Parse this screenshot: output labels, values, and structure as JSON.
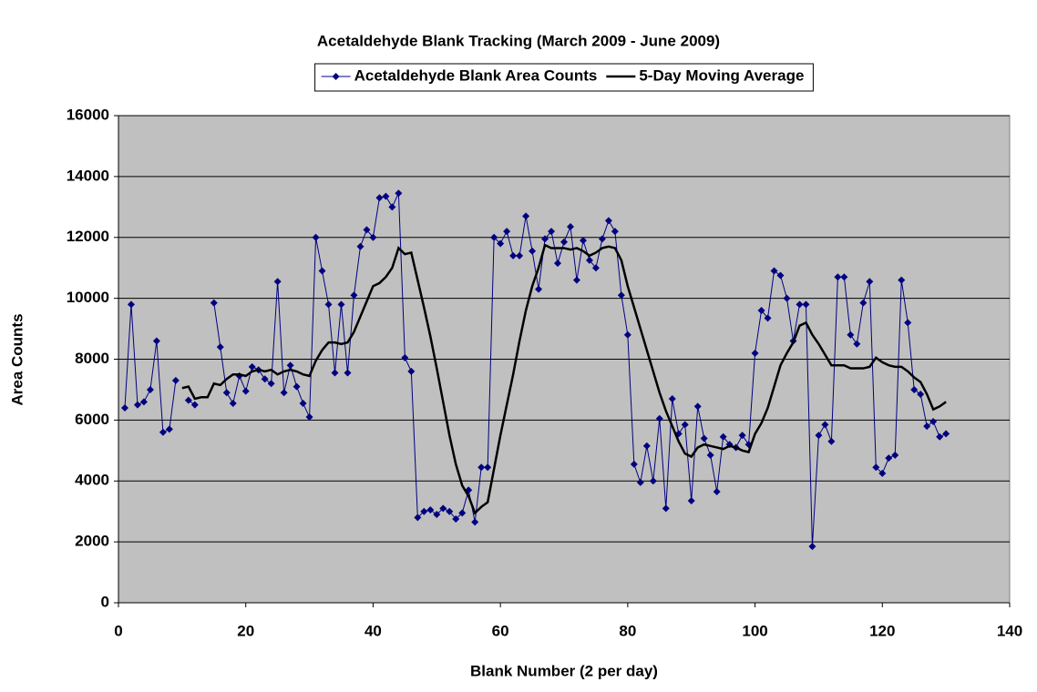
{
  "chart_data": {
    "type": "line",
    "title": "Acetaldehyde Blank Tracking (March 2009 - June 2009)",
    "x_label": "Blank Number (2 per day)",
    "y_label": "Area Counts",
    "x": [
      1,
      2,
      3,
      4,
      5,
      6,
      7,
      8,
      9,
      10,
      11,
      12,
      13,
      14,
      15,
      16,
      17,
      18,
      19,
      20,
      21,
      22,
      23,
      24,
      25,
      26,
      27,
      28,
      29,
      30,
      31,
      32,
      33,
      34,
      35,
      36,
      37,
      38,
      39,
      40,
      41,
      42,
      43,
      44,
      45,
      46,
      47,
      48,
      49,
      50,
      51,
      52,
      53,
      54,
      55,
      56,
      57,
      58,
      59,
      60,
      61,
      62,
      63,
      64,
      65,
      66,
      67,
      68,
      69,
      70,
      71,
      72,
      73,
      74,
      75,
      76,
      77,
      78,
      79,
      80,
      81,
      82,
      83,
      84,
      85,
      86,
      87,
      88,
      89,
      90,
      91,
      92,
      93,
      94,
      95,
      96,
      97,
      98,
      99,
      100,
      101,
      102,
      103,
      104,
      105,
      106,
      107,
      108,
      109,
      110,
      111,
      112,
      113,
      114,
      115,
      116,
      117,
      118,
      119,
      120,
      121,
      122,
      123,
      124,
      125,
      126,
      127,
      128,
      129,
      130
    ],
    "series": [
      {
        "name": "Acetaldehyde Blank Area Counts",
        "color": "#000080",
        "marker": "diamond",
        "values": [
          6400,
          9800,
          6500,
          6600,
          7000,
          8600,
          5600,
          5700,
          7300,
          null,
          6650,
          6500,
          null,
          null,
          9850,
          8400,
          6900,
          6550,
          7450,
          6950,
          7750,
          7650,
          7350,
          7200,
          10550,
          6900,
          7800,
          7100,
          6550,
          6100,
          12000,
          10900,
          9800,
          7550,
          9800,
          7550,
          10100,
          11700,
          12250,
          12000,
          13300,
          13350,
          13000,
          13450,
          8050,
          7600,
          2800,
          3000,
          3050,
          2900,
          3100,
          3000,
          2750,
          2950,
          3700,
          2650,
          4450,
          4450,
          12000,
          11800,
          12200,
          11400,
          11400,
          12700,
          11550,
          10300,
          11950,
          12200,
          11150,
          11850,
          12350,
          10600,
          11900,
          11250,
          11000,
          11950,
          12550,
          12200,
          10100,
          8800,
          4550,
          3950,
          5150,
          4000,
          6050,
          3100,
          6700,
          5550,
          5850,
          3350,
          6450,
          5400,
          4850,
          3650,
          5450,
          5200,
          5100,
          5500,
          5200,
          8200,
          9600,
          9350,
          10900,
          10750,
          10000,
          8600,
          9800,
          9800,
          1850,
          5500,
          5850,
          5300,
          10700,
          10700,
          8800,
          8500,
          9850,
          10550,
          4450,
          4250,
          4750,
          4850,
          10600,
          9200,
          7000,
          6850,
          5800,
          5950,
          5450,
          5550
        ]
      },
      {
        "name": "5-Day Moving Average",
        "color": "#000000",
        "marker": "none",
        "values": [
          null,
          null,
          null,
          null,
          null,
          null,
          null,
          null,
          null,
          7050,
          7100,
          6700,
          6750,
          6750,
          7200,
          7150,
          7350,
          7500,
          7500,
          7450,
          7600,
          7650,
          7600,
          7650,
          7500,
          7600,
          7650,
          7600,
          7500,
          7450,
          7950,
          8300,
          8550,
          8550,
          8500,
          8550,
          8900,
          9400,
          9900,
          10400,
          10500,
          10700,
          11000,
          11650,
          11450,
          11500,
          10600,
          9700,
          8750,
          7700,
          6600,
          5500,
          4550,
          3850,
          3500,
          2950,
          3150,
          3300,
          4400,
          5500,
          6500,
          7500,
          8600,
          9600,
          10400,
          11000,
          11750,
          11650,
          11650,
          11650,
          11600,
          11650,
          11550,
          11400,
          11500,
          11650,
          11700,
          11650,
          11250,
          10400,
          9700,
          9000,
          8300,
          7600,
          6900,
          6300,
          5800,
          5300,
          4900,
          4800,
          5100,
          5200,
          5150,
          5100,
          5050,
          5150,
          5100,
          5000,
          4950,
          5550,
          5900,
          6400,
          7100,
          7800,
          8200,
          8550,
          9100,
          9200,
          8800,
          8500,
          8150,
          7800,
          7800,
          7800,
          7700,
          7700,
          7700,
          7750,
          8050,
          7900,
          7800,
          7750,
          7750,
          7600,
          7400,
          7250,
          6850,
          6350,
          6450,
          6600
        ]
      }
    ],
    "xlim": [
      0,
      140
    ],
    "xticks": [
      0,
      20,
      40,
      60,
      80,
      100,
      120,
      140
    ],
    "ylim": [
      0,
      16000
    ],
    "yticks": [
      0,
      2000,
      4000,
      6000,
      8000,
      10000,
      12000,
      14000,
      16000
    ],
    "grid": true,
    "plot_background": "#c0c0c0",
    "legend_position": "top"
  }
}
